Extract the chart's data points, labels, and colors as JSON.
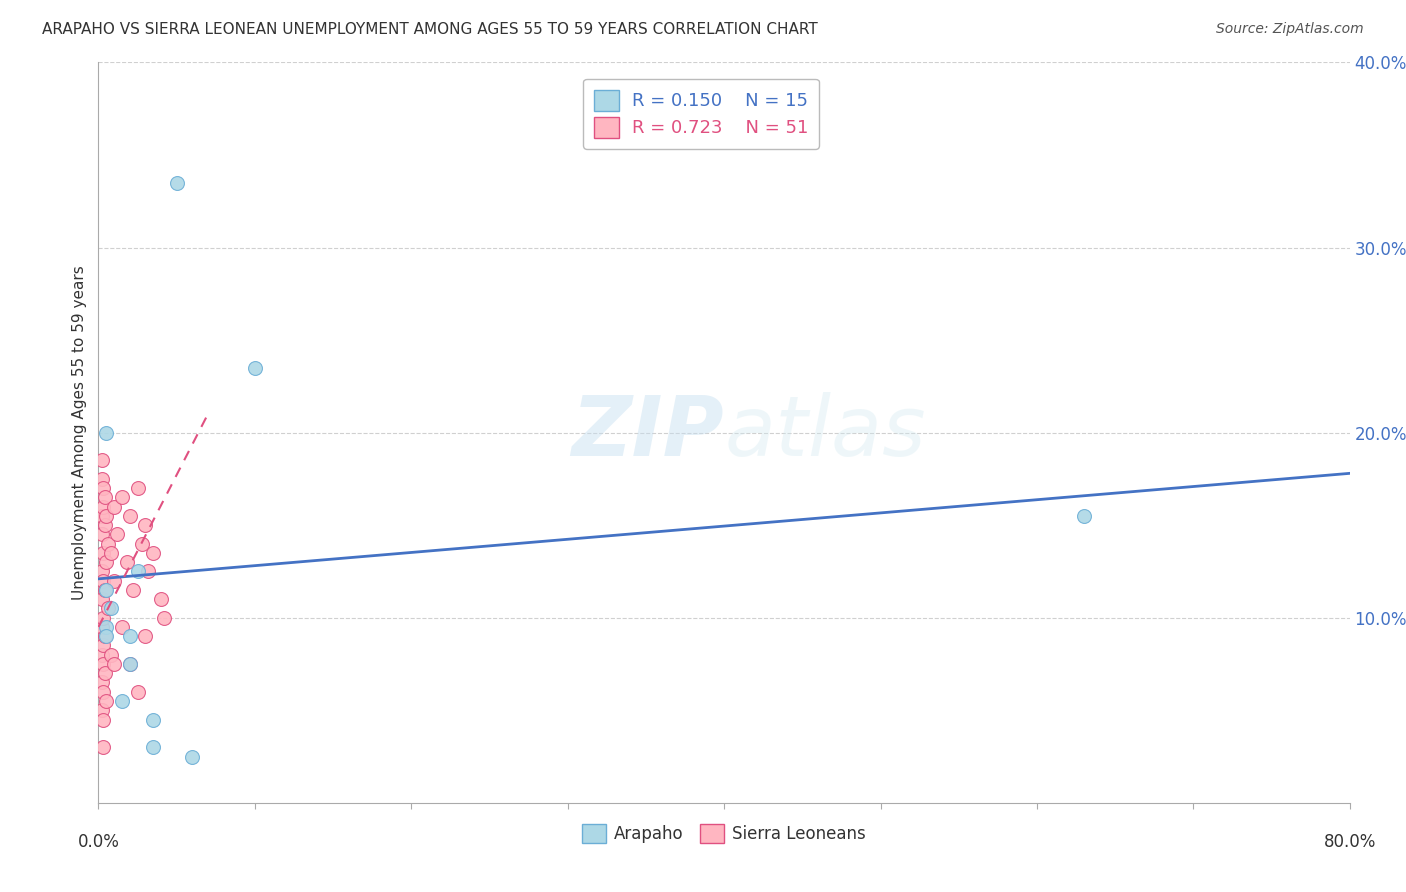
{
  "title": "ARAPAHO VS SIERRA LEONEAN UNEMPLOYMENT AMONG AGES 55 TO 59 YEARS CORRELATION CHART",
  "source": "Source: ZipAtlas.com",
  "ylabel": "Unemployment Among Ages 55 to 59 years",
  "xlim": [
    0.0,
    0.8
  ],
  "ylim": [
    0.0,
    0.4
  ],
  "yticks": [
    0.1,
    0.2,
    0.3,
    0.4
  ],
  "ytick_labels": [
    "10.0%",
    "20.0%",
    "30.0%",
    "40.0%"
  ],
  "arapaho_x": [
    0.005,
    0.05,
    0.1,
    0.025,
    0.63,
    0.005,
    0.005,
    0.008,
    0.005,
    0.02,
    0.02,
    0.015,
    0.035,
    0.035,
    0.06
  ],
  "arapaho_y": [
    0.2,
    0.335,
    0.235,
    0.125,
    0.155,
    0.115,
    0.095,
    0.105,
    0.09,
    0.09,
    0.075,
    0.055,
    0.045,
    0.03,
    0.025
  ],
  "sierra_x": [
    0.002,
    0.002,
    0.002,
    0.002,
    0.002,
    0.002,
    0.002,
    0.002,
    0.002,
    0.002,
    0.003,
    0.003,
    0.003,
    0.003,
    0.003,
    0.003,
    0.003,
    0.003,
    0.003,
    0.003,
    0.004,
    0.004,
    0.004,
    0.004,
    0.004,
    0.005,
    0.005,
    0.005,
    0.006,
    0.006,
    0.008,
    0.008,
    0.01,
    0.01,
    0.01,
    0.012,
    0.015,
    0.015,
    0.018,
    0.02,
    0.02,
    0.022,
    0.025,
    0.025,
    0.028,
    0.03,
    0.03,
    0.032,
    0.035,
    0.04,
    0.042
  ],
  "sierra_y": [
    0.185,
    0.175,
    0.155,
    0.145,
    0.125,
    0.11,
    0.095,
    0.08,
    0.065,
    0.05,
    0.17,
    0.16,
    0.135,
    0.12,
    0.1,
    0.085,
    0.075,
    0.06,
    0.045,
    0.03,
    0.165,
    0.15,
    0.115,
    0.09,
    0.07,
    0.155,
    0.13,
    0.055,
    0.14,
    0.105,
    0.135,
    0.08,
    0.16,
    0.12,
    0.075,
    0.145,
    0.165,
    0.095,
    0.13,
    0.155,
    0.075,
    0.115,
    0.17,
    0.06,
    0.14,
    0.15,
    0.09,
    0.125,
    0.135,
    0.11,
    0.1
  ],
  "arapaho_color": "#add8e6",
  "arapaho_edge": "#6baed6",
  "sierra_color": "#ffb6c1",
  "sierra_edge": "#e05080",
  "arapaho_R": 0.15,
  "arapaho_N": 15,
  "sierra_R": 0.723,
  "sierra_N": 51,
  "blue_line_x": [
    0.0,
    0.8
  ],
  "blue_line_y": [
    0.121,
    0.178
  ],
  "pink_line_x": [
    0.0,
    0.07
  ],
  "pink_line_y": [
    0.095,
    0.21
  ],
  "watermark_zip": "ZIP",
  "watermark_atlas": "atlas",
  "background_color": "#ffffff",
  "grid_color": "#d0d0d0"
}
